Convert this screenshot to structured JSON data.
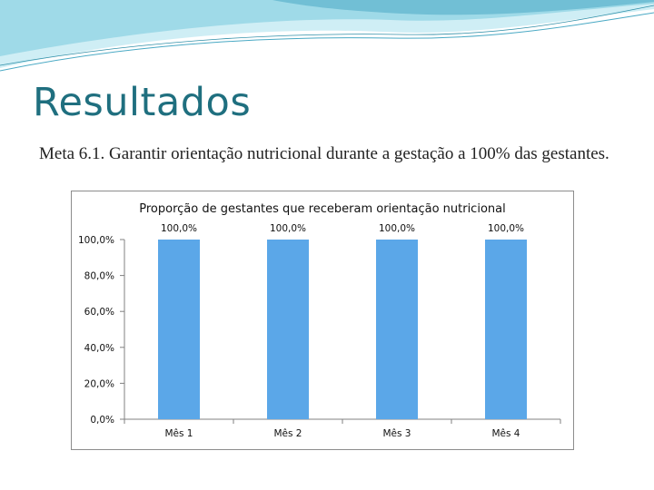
{
  "slide": {
    "title": "Resultados",
    "subtitle": "Meta 6.1. Garantir orientação nutricional durante a gestação a 100% das gestantes."
  },
  "colors": {
    "title": "#1f6f7f",
    "bar": "#5ba7e8",
    "wave_light": "#cfeef5",
    "wave_mid": "#8fd3e3",
    "wave_dark": "#4aa9c4"
  },
  "chart_data": {
    "type": "bar",
    "title": "Proporção de gestantes que receberam orientação nutricional",
    "categories": [
      "Mês 1",
      "Mês 2",
      "Mês 3",
      "Mês 4"
    ],
    "values": [
      100.0,
      100.0,
      100.0,
      100.0
    ],
    "data_labels": [
      "100,0%",
      "100,0%",
      "100,0%",
      "100,0%"
    ],
    "y_ticks": [
      0,
      20,
      40,
      60,
      80,
      100
    ],
    "y_tick_labels": [
      "0,0%",
      "20,0%",
      "40,0%",
      "60,0%",
      "80,0%",
      "100,0%"
    ],
    "ylim": [
      0,
      100
    ],
    "xlabel": "",
    "ylabel": "",
    "grid": false,
    "legend": "none"
  }
}
